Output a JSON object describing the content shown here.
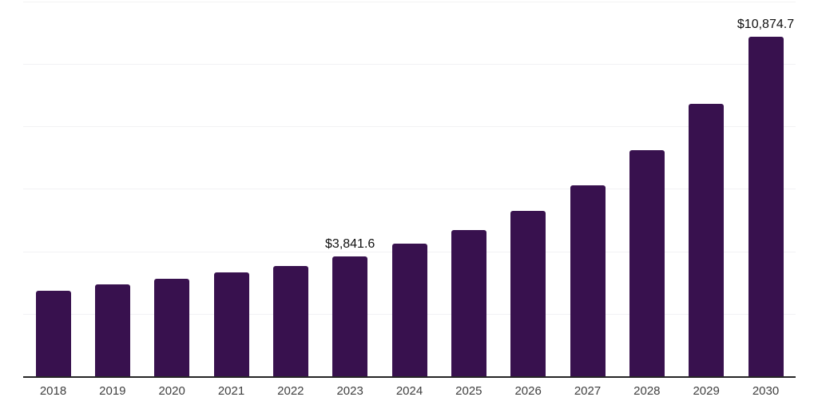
{
  "chart_data": {
    "type": "bar",
    "title": "",
    "xlabel": "",
    "ylabel": "",
    "categories": [
      "2018",
      "2019",
      "2020",
      "2021",
      "2022",
      "2023",
      "2024",
      "2025",
      "2026",
      "2027",
      "2028",
      "2029",
      "2030"
    ],
    "values": [
      2740,
      2935,
      3125,
      3315,
      3535,
      3841.6,
      4235,
      4685,
      5300,
      6110,
      7235,
      8735,
      10874.7
    ],
    "data_labels": {
      "2023": "$3,841.6",
      "2030": "$10,874.7"
    },
    "ylim": [
      0,
      12000
    ],
    "gridline_step": 2000,
    "grid": true,
    "y_axis_labels_visible": false,
    "legend": "none",
    "bar_color": "#38114e",
    "axis_line_color": "#262626",
    "gridline_color": "#f2f2f4",
    "tick_label_color": "#404040",
    "data_label_color": "#111111",
    "background_color": "#ffffff"
  }
}
